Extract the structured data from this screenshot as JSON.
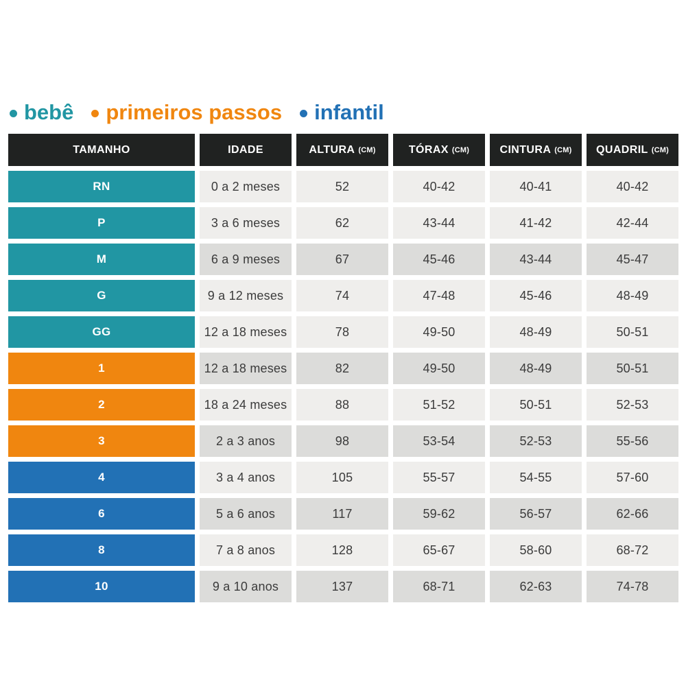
{
  "legend": {
    "items": [
      {
        "id": "bebe",
        "label": "bebê",
        "color": "#2196a3"
      },
      {
        "id": "primeiros-passos",
        "label": "primeiros passos",
        "color": "#f0860f"
      },
      {
        "id": "infantil",
        "label": "infantil",
        "color": "#2271b5"
      }
    ]
  },
  "colors": {
    "bebe": "#2196a3",
    "primeiros-passos": "#f0860f",
    "infantil": "#2271b5",
    "header_bg": "#202221",
    "row_light": "#efeeec",
    "row_dark": "#dcdcda",
    "data_text": "#3b3b3b"
  },
  "table": {
    "headers": [
      {
        "key": "tamanho",
        "label": "TAMANHO",
        "unit": ""
      },
      {
        "key": "idade",
        "label": "IDADE",
        "unit": ""
      },
      {
        "key": "altura",
        "label": "ALTURA",
        "unit": "(CM)"
      },
      {
        "key": "torax",
        "label": "TÓRAX",
        "unit": "(CM)"
      },
      {
        "key": "cintura",
        "label": "CINTURA",
        "unit": "(CM)"
      },
      {
        "key": "quadril",
        "label": "QUADRIL",
        "unit": "(CM)"
      }
    ],
    "rows": [
      {
        "size": "RN",
        "group": "bebe",
        "shade": "light",
        "idade": "0 a 2 meses",
        "altura": "52",
        "torax": "40-42",
        "cintura": "40-41",
        "quadril": "40-42"
      },
      {
        "size": "P",
        "group": "bebe",
        "shade": "light",
        "idade": "3 a 6 meses",
        "altura": "62",
        "torax": "43-44",
        "cintura": "41-42",
        "quadril": "42-44"
      },
      {
        "size": "M",
        "group": "bebe",
        "shade": "dark",
        "idade": "6 a 9 meses",
        "altura": "67",
        "torax": "45-46",
        "cintura": "43-44",
        "quadril": "45-47"
      },
      {
        "size": "G",
        "group": "bebe",
        "shade": "light",
        "idade": "9 a 12 meses",
        "altura": "74",
        "torax": "47-48",
        "cintura": "45-46",
        "quadril": "48-49"
      },
      {
        "size": "GG",
        "group": "bebe",
        "shade": "light",
        "idade": "12 a 18 meses",
        "altura": "78",
        "torax": "49-50",
        "cintura": "48-49",
        "quadril": "50-51"
      },
      {
        "size": "1",
        "group": "primeiros-passos",
        "shade": "dark",
        "idade": "12 a 18 meses",
        "altura": "82",
        "torax": "49-50",
        "cintura": "48-49",
        "quadril": "50-51"
      },
      {
        "size": "2",
        "group": "primeiros-passos",
        "shade": "light",
        "idade": "18 a 24 meses",
        "altura": "88",
        "torax": "51-52",
        "cintura": "50-51",
        "quadril": "52-53"
      },
      {
        "size": "3",
        "group": "primeiros-passos",
        "shade": "dark",
        "idade": "2 a 3 anos",
        "altura": "98",
        "torax": "53-54",
        "cintura": "52-53",
        "quadril": "55-56"
      },
      {
        "size": "4",
        "group": "infantil",
        "shade": "light",
        "idade": "3 a 4 anos",
        "altura": "105",
        "torax": "55-57",
        "cintura": "54-55",
        "quadril": "57-60"
      },
      {
        "size": "6",
        "group": "infantil",
        "shade": "dark",
        "idade": "5 a 6 anos",
        "altura": "117",
        "torax": "59-62",
        "cintura": "56-57",
        "quadril": "62-66"
      },
      {
        "size": "8",
        "group": "infantil",
        "shade": "light",
        "idade": "7 a 8 anos",
        "altura": "128",
        "torax": "65-67",
        "cintura": "58-60",
        "quadril": "68-72"
      },
      {
        "size": "10",
        "group": "infantil",
        "shade": "dark",
        "idade": "9 a 10 anos",
        "altura": "137",
        "torax": "68-71",
        "cintura": "62-63",
        "quadril": "74-78"
      }
    ]
  },
  "chart_data": {
    "type": "table",
    "title": "",
    "columns": [
      "TAMANHO",
      "IDADE",
      "ALTURA (CM)",
      "TÓRAX (CM)",
      "CINTURA (CM)",
      "QUADRIL (CM)"
    ],
    "rows": [
      [
        "RN",
        "0 a 2 meses",
        "52",
        "40-42",
        "40-41",
        "40-42"
      ],
      [
        "P",
        "3 a 6 meses",
        "62",
        "43-44",
        "41-42",
        "42-44"
      ],
      [
        "M",
        "6 a 9 meses",
        "67",
        "45-46",
        "43-44",
        "45-47"
      ],
      [
        "G",
        "9 a 12 meses",
        "74",
        "47-48",
        "45-46",
        "48-49"
      ],
      [
        "GG",
        "12 a 18 meses",
        "78",
        "49-50",
        "48-49",
        "50-51"
      ],
      [
        "1",
        "12 a 18 meses",
        "82",
        "49-50",
        "48-49",
        "50-51"
      ],
      [
        "2",
        "18 a 24 meses",
        "88",
        "51-52",
        "50-51",
        "52-53"
      ],
      [
        "3",
        "2 a 3 anos",
        "98",
        "53-54",
        "52-53",
        "55-56"
      ],
      [
        "4",
        "3 a 4 anos",
        "105",
        "55-57",
        "54-55",
        "57-60"
      ],
      [
        "6",
        "5 a 6 anos",
        "117",
        "59-62",
        "56-57",
        "62-66"
      ],
      [
        "8",
        "7 a 8 anos",
        "128",
        "65-67",
        "58-60",
        "68-72"
      ],
      [
        "10",
        "9 a 10 anos",
        "137",
        "68-71",
        "62-63",
        "74-78"
      ]
    ],
    "groups": [
      {
        "name": "bebê",
        "sizes": [
          "RN",
          "P",
          "M",
          "G",
          "GG"
        ],
        "color": "#2196a3"
      },
      {
        "name": "primeiros passos",
        "sizes": [
          "1",
          "2",
          "3"
        ],
        "color": "#f0860f"
      },
      {
        "name": "infantil",
        "sizes": [
          "4",
          "6",
          "8",
          "10"
        ],
        "color": "#2271b5"
      }
    ]
  }
}
